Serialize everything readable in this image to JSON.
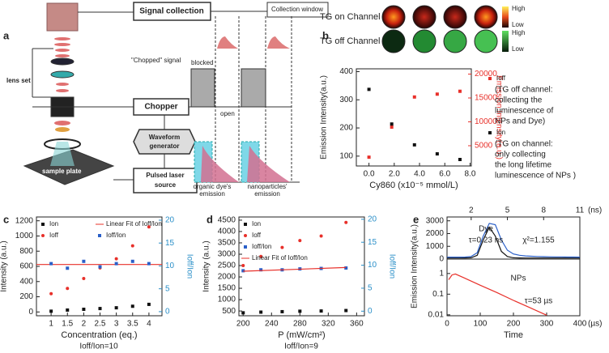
{
  "panel_labels": [
    "a",
    "b",
    "c",
    "d",
    "e"
  ],
  "diagram": {
    "signal_collection": "Signal collection",
    "collection_window": "Collection window",
    "chopped_signal": "\"Chopped\" signal",
    "lens_set": "lens set",
    "blocked": "blocked",
    "open": "open",
    "chopper": "Chopper",
    "waveform_generator": [
      "Waveform",
      "generator"
    ],
    "laser": [
      "Pulsed laser",
      "source"
    ],
    "sample_plate": "sample plate",
    "dye_emission": [
      "organic dye's",
      "emission"
    ],
    "np_emission": [
      "nanoparticles'",
      "emission"
    ]
  },
  "images": {
    "rows": [
      "TG on Channel",
      "TG off Channel"
    ],
    "scale_high": "High",
    "scale_low": "Low"
  },
  "chart_data": [
    {
      "type": "scatter",
      "xlabel": "Cy860 (x10⁻⁵ mmol/L)",
      "ylabel": "Emission Intensity(a.u.)",
      "y2label": "Emission Intensity(a.u.)",
      "y2color": "#e8302a",
      "x": [
        0,
        1.8,
        3.6,
        5.4,
        7.2
      ],
      "xlim": [
        -1,
        8.1
      ],
      "xticks": [
        {
          "value": 0,
          "label": "0.0"
        },
        {
          "value": 2,
          "label": "2.0"
        },
        {
          "value": 4,
          "label": "4.0"
        },
        {
          "value": 6,
          "label": "6.0"
        },
        {
          "value": 8,
          "label": "8.0"
        }
      ],
      "ylim": [
        65,
        410
      ],
      "yticks": [
        100,
        200,
        300,
        400
      ],
      "y2lim": [
        760,
        21100
      ],
      "y2ticks": [
        5000,
        10000,
        15000,
        20000
      ],
      "legend": "outside right",
      "series": [
        {
          "name": "Ioff",
          "color": "#e8302a",
          "marker": "square",
          "axis": "y2",
          "values": [
            2600,
            8900,
            15200,
            15800,
            16400
          ]
        },
        {
          "name": "Ion",
          "color": "#111111",
          "marker": "square",
          "values": [
            337,
            214,
            140,
            108,
            88
          ]
        }
      ],
      "annotations": [
        [
          "(TG off channel:",
          "collecting the",
          "luminescence of",
          "NPs and Dye)"
        ],
        [
          "(TG on channel:",
          "only collecting",
          "the long lifetime",
          "luminescence of NPs )"
        ]
      ]
    },
    {
      "type": "scatter",
      "xlabel": "Concentration (eq.)",
      "ylabel": "Intensity (a.u.)",
      "y2label": "Ioff/Ion",
      "y2color": "#2a8fc8",
      "x": [
        1,
        1.5,
        2,
        2.5,
        3,
        3.5,
        4
      ],
      "xlim": [
        0.55,
        4.4
      ],
      "xticks": [
        1,
        1.5,
        2,
        2.5,
        3,
        3.5,
        4
      ],
      "ylim": [
        -50,
        1250
      ],
      "yticks": [
        0,
        200,
        400,
        600,
        800,
        1000,
        1200
      ],
      "y2lim": [
        -0.9,
        20.7
      ],
      "y2ticks": [
        0,
        5,
        10,
        15,
        20
      ],
      "legend": "upper left",
      "legend_columns": 2,
      "series": [
        {
          "name": "Ion",
          "color": "#111111",
          "marker": "square",
          "values": [
            10,
            25,
            35,
            45,
            55,
            75,
            100
          ]
        },
        {
          "name": "Linear Fit of Ioff/Ion",
          "color": "#e8302a",
          "mode": "line",
          "axis": "y2",
          "x": [
            0.55,
            4.4
          ],
          "values": [
            10.3,
            10.3
          ]
        },
        {
          "name": "Ioff",
          "color": "#e8302a",
          "marker": "circle",
          "values": [
            240,
            310,
            440,
            580,
            700,
            870,
            1120
          ]
        },
        {
          "name": "Ioff/Ion",
          "color": "#2a5fc8",
          "marker": "square",
          "axis": "y2",
          "values": [
            10.5,
            9.5,
            11,
            9.8,
            10.5,
            11,
            10.5
          ]
        }
      ],
      "annotations": [
        "Ioff/Ion=10"
      ]
    },
    {
      "type": "scatter",
      "xlabel": "P (mW/cm²)",
      "ylabel": "Intensity (a.u.)",
      "y2label": "Ioff/Ion",
      "y2color": "#2a8fc8",
      "x": [
        200,
        225,
        255,
        280,
        310,
        345
      ],
      "xlim": [
        194,
        371
      ],
      "xticks": [
        200,
        240,
        280,
        320,
        360
      ],
      "ylim": [
        290,
        4640
      ],
      "yticks": [
        500,
        1000,
        1500,
        2000,
        2500,
        3000,
        3500,
        4000,
        4500
      ],
      "y2lim": [
        -1,
        20.5
      ],
      "y2ticks": [
        0,
        5,
        10,
        15,
        20
      ],
      "legend": "upper left",
      "legend_columns": 1,
      "series": [
        {
          "name": "Ion",
          "color": "#111111",
          "marker": "square",
          "values": [
            420,
            450,
            470,
            490,
            500,
            520
          ]
        },
        {
          "name": "Ioff",
          "color": "#e8302a",
          "marker": "circle",
          "values": [
            2500,
            2900,
            3300,
            3600,
            3800,
            4400
          ]
        },
        {
          "name": "Ioff/Ion",
          "color": "#2a5fc8",
          "marker": "square",
          "axis": "y2",
          "values": [
            8.8,
            9,
            9,
            9.2,
            9.3,
            9.4
          ]
        },
        {
          "name": "Linear Fit of Ioff/Ion",
          "color": "#e8302a",
          "mode": "line",
          "axis": "y2",
          "x": [
            200,
            345
          ],
          "values": [
            8.7,
            9.5
          ]
        }
      ],
      "annotations": [
        "Ioff/Ion=9"
      ]
    },
    {
      "type": "line",
      "ylabel": "Emission Intensity(a.u.)",
      "xaxis": "top",
      "xunit": "(ns)",
      "x": [
        0,
        0.5,
        1,
        1.5,
        2,
        2.5,
        3,
        3.5,
        4,
        4.5,
        5,
        5.5,
        6,
        6.5,
        7,
        7.5,
        8,
        8.5,
        9,
        9.5,
        10,
        10.5,
        11
      ],
      "xlim": [
        0,
        11
      ],
      "xticks": [
        2,
        5,
        8,
        11
      ],
      "ylim": [
        0,
        3300
      ],
      "yticks": [
        0,
        1000,
        2000,
        3000
      ],
      "series": [
        {
          "color": "#111111",
          "mode": "line",
          "values": [
            80,
            80,
            80,
            90,
            100,
            300,
            1500,
            2500,
            1800,
            600,
            200,
            100,
            90,
            80,
            80,
            80,
            80,
            80,
            80,
            80,
            80,
            80,
            80
          ]
        },
        {
          "color": "#2a5fc8",
          "mode": "line",
          "values": [
            150,
            150,
            150,
            160,
            200,
            500,
            1800,
            2800,
            2700,
            1500,
            700,
            400,
            300,
            250,
            220,
            200,
            190,
            180,
            170,
            170,
            160,
            160,
            150
          ]
        }
      ],
      "annotations": [
        "Dye",
        "τ=0.23 ns",
        "χ²=1.155"
      ]
    },
    {
      "type": "line",
      "xlabel": "Time",
      "xunit": "(µs)",
      "yscale": "log",
      "x": [
        5,
        15,
        25,
        50,
        100,
        150,
        200,
        250,
        300
      ],
      "xlim": [
        0,
        400
      ],
      "xticks": [
        0,
        100,
        200,
        300,
        400
      ],
      "ylim": [
        0.009,
        5
      ],
      "yticks": [
        0.01,
        0.1,
        1
      ],
      "series": [
        {
          "color": "#e8302a",
          "mode": "line",
          "values": [
            0.5,
            0.85,
            0.95,
            0.63,
            0.27,
            0.12,
            0.05,
            0.022,
            0.0096
          ]
        }
      ],
      "annotations": [
        "NPs",
        "τ=53 µs"
      ]
    }
  ]
}
